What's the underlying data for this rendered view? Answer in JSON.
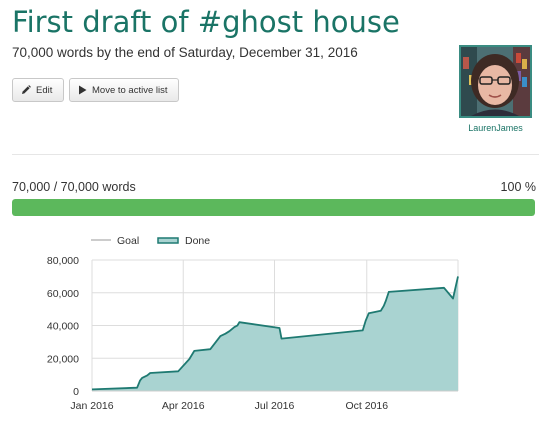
{
  "goal": {
    "title": "First draft of #ghost house",
    "subtitle": "70,000 words by the end of Saturday, December 31, 2016"
  },
  "buttons": {
    "edit_label": "Edit",
    "move_label": "Move to active list"
  },
  "user": {
    "name": "LaurenJames"
  },
  "progress": {
    "count_text": "70,000 / 70,000 words",
    "percent_text": "100 %",
    "percent": 100
  },
  "colors": {
    "title": "#1a7466",
    "progress": "#5cb85c",
    "done_line": "#1f7a72",
    "done_fill": "#a9d3d1",
    "goal_line": "#cccccc"
  },
  "chart_data": {
    "type": "area",
    "series": [
      {
        "name": "Goal",
        "values": []
      },
      {
        "name": "Done",
        "x": [
          "2016-01-01",
          "2016-02-15",
          "2016-02-18",
          "2016-02-20",
          "2016-02-25",
          "2016-02-28",
          "2016-03-27",
          "2016-04-07",
          "2016-04-12",
          "2016-04-28",
          "2016-05-08",
          "2016-05-13",
          "2016-05-17",
          "2016-05-22",
          "2016-05-25",
          "2016-05-27",
          "2016-07-06",
          "2016-07-08",
          "2016-09-27",
          "2016-09-30",
          "2016-10-03",
          "2016-10-15",
          "2016-10-18",
          "2016-10-20",
          "2016-10-23",
          "2016-12-17",
          "2016-12-26",
          "2016-12-31"
        ],
        "values": [
          1000,
          2000,
          6500,
          8000,
          9500,
          11000,
          12000,
          19500,
          24500,
          25500,
          33500,
          35000,
          36500,
          39000,
          40000,
          42000,
          38500,
          32000,
          37000,
          43000,
          47500,
          49000,
          52000,
          55000,
          60500,
          63000,
          56500,
          70000
        ]
      }
    ],
    "legend": [
      "Goal",
      "Done"
    ],
    "legend_position": "top-left",
    "x_ticks": [
      "Jan 2016",
      "Apr 2016",
      "Jul 2016",
      "Oct 2016"
    ],
    "x_tick_values": [
      "2016-01-01",
      "2016-04-01",
      "2016-07-01",
      "2016-10-01"
    ],
    "y_ticks": [
      "0",
      "20,000",
      "40,000",
      "60,000",
      "80,000"
    ],
    "ylim": [
      0,
      80000
    ],
    "xlim": [
      "2016-01-01",
      "2016-12-31"
    ],
    "grid": true
  }
}
